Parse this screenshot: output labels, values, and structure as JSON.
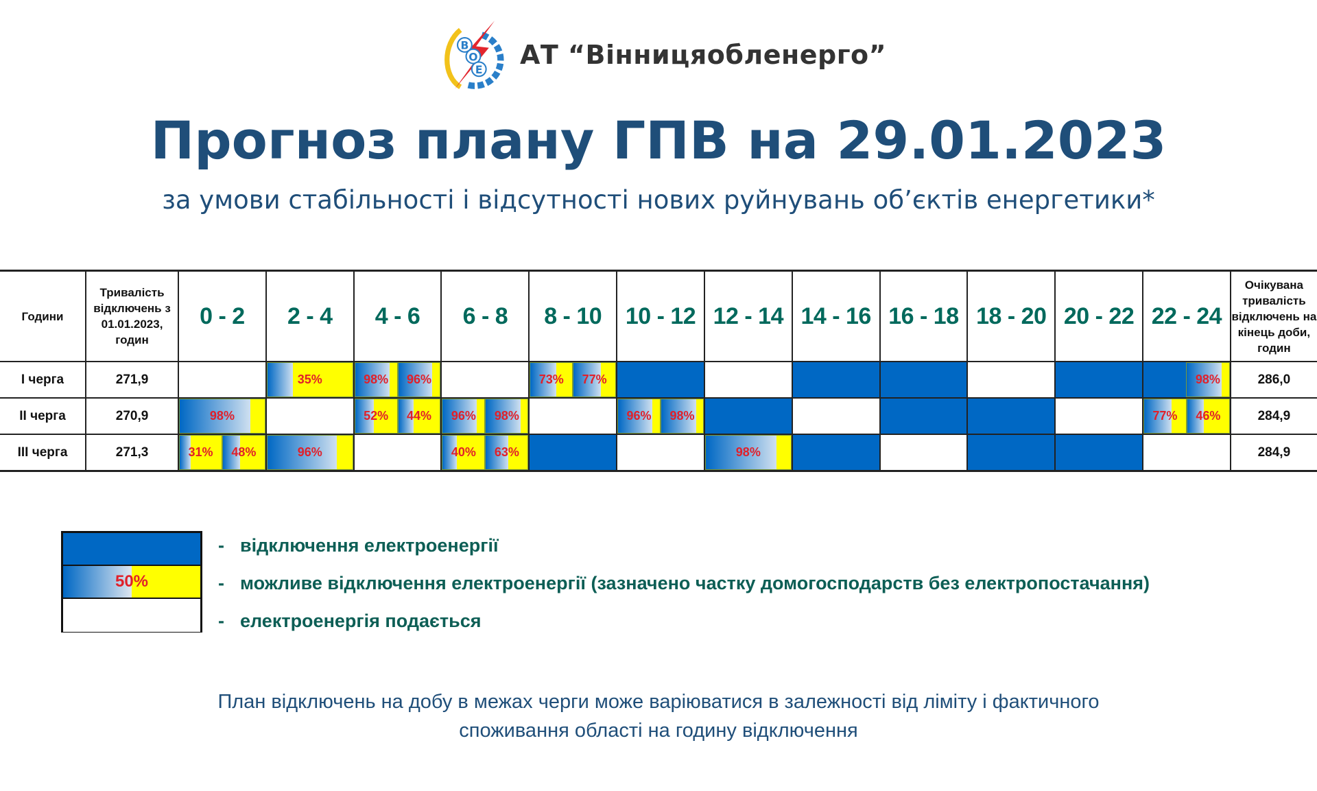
{
  "header": {
    "logo_text": "ВОЕ",
    "company": "АТ “Вінницяобленерго”",
    "title": "Прогноз плану ГПВ на 29.01.2023",
    "subtitle": "за умови стабільності і відсутності нових руйнувань об’єктів енергетики*"
  },
  "colors": {
    "off": "#0068c4",
    "maybe": "#ffff00",
    "on": "#ffffff",
    "title": "#1f4e79",
    "hours": "#00695c",
    "percent": "#e0202a"
  },
  "table": {
    "col_label": "Години",
    "col_duration": "Тривалість відключень з 01.01.2023, годин",
    "col_expected": "Очікувана тривалість відключень на кінець доби, годин",
    "hours": [
      "0 - 2",
      "2 - 4",
      "4 - 6",
      "6 - 8",
      "8 - 10",
      "10 - 12",
      "12 - 14",
      "14 - 16",
      "16 - 18",
      "18 - 20",
      "20 - 22",
      "22 - 24"
    ],
    "rows": [
      {
        "label": "I черга",
        "duration": "271,9",
        "expected": "286,0",
        "cells": [
          [
            {
              "s": "on"
            }
          ],
          [
            {
              "s": "maybe",
              "pct": "35%"
            }
          ],
          [
            {
              "s": "maybe",
              "pct": "98%"
            },
            {
              "s": "maybe",
              "pct": "96%"
            }
          ],
          [
            {
              "s": "on"
            }
          ],
          [
            {
              "s": "maybe",
              "pct": "73%"
            },
            {
              "s": "maybe",
              "pct": "77%"
            }
          ],
          [
            {
              "s": "off"
            }
          ],
          [
            {
              "s": "on"
            }
          ],
          [
            {
              "s": "off"
            }
          ],
          [
            {
              "s": "off"
            }
          ],
          [
            {
              "s": "on"
            }
          ],
          [
            {
              "s": "off"
            }
          ],
          [
            {
              "s": "off"
            },
            {
              "s": "maybe",
              "pct": "98%"
            }
          ]
        ]
      },
      {
        "label": "II черга",
        "duration": "270,9",
        "expected": "284,9",
        "cells": [
          [
            {
              "s": "maybe",
              "pct": "98%"
            }
          ],
          [
            {
              "s": "on"
            }
          ],
          [
            {
              "s": "maybe",
              "pct": "52%"
            },
            {
              "s": "maybe",
              "pct": "44%"
            }
          ],
          [
            {
              "s": "maybe",
              "pct": "96%"
            },
            {
              "s": "maybe",
              "pct": "98%"
            }
          ],
          [
            {
              "s": "on"
            }
          ],
          [
            {
              "s": "maybe",
              "pct": "96%"
            },
            {
              "s": "maybe",
              "pct": "98%"
            }
          ],
          [
            {
              "s": "off"
            }
          ],
          [
            {
              "s": "on"
            }
          ],
          [
            {
              "s": "off"
            }
          ],
          [
            {
              "s": "off"
            }
          ],
          [
            {
              "s": "on"
            }
          ],
          [
            {
              "s": "maybe",
              "pct": "77%"
            },
            {
              "s": "maybe",
              "pct": "46%"
            }
          ]
        ]
      },
      {
        "label": "III черга",
        "duration": "271,3",
        "expected": "284,9",
        "cells": [
          [
            {
              "s": "maybe",
              "pct": "31%"
            },
            {
              "s": "maybe",
              "pct": "48%"
            }
          ],
          [
            {
              "s": "maybe",
              "pct": "96%"
            }
          ],
          [
            {
              "s": "on"
            }
          ],
          [
            {
              "s": "maybe",
              "pct": "40%"
            },
            {
              "s": "maybe",
              "pct": "63%"
            }
          ],
          [
            {
              "s": "off"
            }
          ],
          [
            {
              "s": "on"
            }
          ],
          [
            {
              "s": "maybe",
              "pct": "98%"
            }
          ],
          [
            {
              "s": "off"
            }
          ],
          [
            {
              "s": "on"
            }
          ],
          [
            {
              "s": "off"
            }
          ],
          [
            {
              "s": "off"
            }
          ],
          [
            {
              "s": "on"
            }
          ]
        ]
      }
    ]
  },
  "legend": {
    "sample_pct": "50%",
    "dash": "-",
    "items": [
      "відключення електроенергії",
      "можливе відключення електроенергії (зазначено частку домогосподарств без електропостачання)",
      "електроенергія подається"
    ]
  },
  "footer": {
    "line1": "План відключень на добу в межах черги може варіюватися в залежності від ліміту і фактичного",
    "line2": "споживання області на годину відключення"
  }
}
